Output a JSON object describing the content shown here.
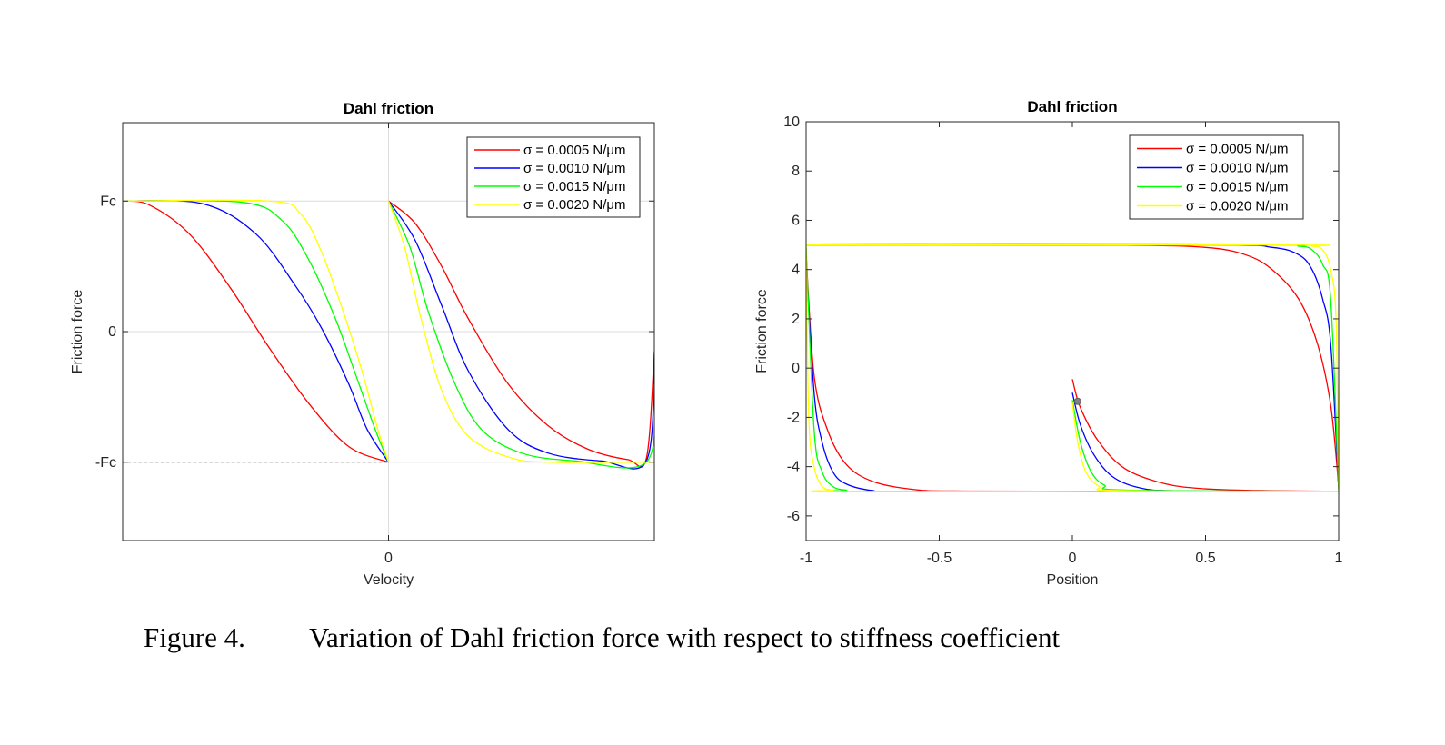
{
  "caption": {
    "label": "Figure 4.",
    "text": "Variation of Dahl friction force with respect to stiffness coefficient"
  },
  "colors": {
    "red": "#ff0000",
    "blue": "#0000ff",
    "green": "#00ff00",
    "yellow": "#ffff00",
    "axis": "#262626",
    "grid": "#dcdcdc"
  },
  "chart_data": [
    {
      "type": "line",
      "title": "Dahl friction",
      "xlabel": "Velocity",
      "ylabel": "Friction force",
      "xlim": [
        -1,
        1
      ],
      "ylim": [
        -1.6,
        1.6
      ],
      "xticks": [
        {
          "value": 0,
          "label": "0"
        }
      ],
      "yticks": [
        {
          "value": 1,
          "label": "Fc"
        },
        {
          "value": 0,
          "label": "0"
        },
        {
          "value": -1,
          "label": "-Fc"
        }
      ],
      "grid": true,
      "reference_line": {
        "y": -1,
        "style": "dotted"
      },
      "legend_position": "top-right",
      "series": [
        {
          "name": "σ = 0.0005 N/μm",
          "color": "#ff0000",
          "branch_left": [
            [
              -1,
              1
            ],
            [
              -0.9,
              0.97
            ],
            [
              -0.75,
              0.75
            ],
            [
              -0.6,
              0.35
            ],
            [
              -0.45,
              -0.12
            ],
            [
              -0.3,
              -0.55
            ],
            [
              -0.15,
              -0.88
            ],
            [
              0,
              -1
            ]
          ],
          "branch_right": [
            [
              0,
              1
            ],
            [
              0.1,
              0.83
            ],
            [
              0.2,
              0.5
            ],
            [
              0.3,
              0.1
            ],
            [
              0.45,
              -0.4
            ],
            [
              0.6,
              -0.72
            ],
            [
              0.75,
              -0.9
            ],
            [
              0.9,
              -0.98
            ],
            [
              0.97,
              -0.97
            ],
            [
              1,
              -0.15
            ]
          ]
        },
        {
          "name": "σ = 0.0010 N/μm",
          "color": "#0000ff",
          "branch_left": [
            [
              -1,
              1
            ],
            [
              -0.7,
              0.98
            ],
            [
              -0.5,
              0.75
            ],
            [
              -0.35,
              0.35
            ],
            [
              -0.25,
              0.02
            ],
            [
              -0.15,
              -0.4
            ],
            [
              -0.08,
              -0.75
            ],
            [
              0,
              -1
            ]
          ],
          "branch_right": [
            [
              0,
              1
            ],
            [
              0.1,
              0.7
            ],
            [
              0.2,
              0.2
            ],
            [
              0.3,
              -0.3
            ],
            [
              0.45,
              -0.75
            ],
            [
              0.6,
              -0.93
            ],
            [
              0.8,
              -0.99
            ],
            [
              0.97,
              -0.99
            ],
            [
              1,
              -0.2
            ]
          ]
        },
        {
          "name": "σ = 0.0015 N/μm",
          "color": "#00ff00",
          "branch_left": [
            [
              -1,
              1
            ],
            [
              -0.55,
              0.99
            ],
            [
              -0.4,
              0.85
            ],
            [
              -0.3,
              0.55
            ],
            [
              -0.2,
              0.1
            ],
            [
              -0.12,
              -0.35
            ],
            [
              -0.05,
              -0.75
            ],
            [
              0,
              -1
            ]
          ],
          "branch_right": [
            [
              0,
              1
            ],
            [
              0.08,
              0.65
            ],
            [
              0.15,
              0.15
            ],
            [
              0.25,
              -0.4
            ],
            [
              0.35,
              -0.75
            ],
            [
              0.5,
              -0.93
            ],
            [
              0.7,
              -0.99
            ],
            [
              0.97,
              -1
            ],
            [
              1,
              -0.4
            ]
          ]
        },
        {
          "name": "σ = 0.0020 N/μm",
          "color": "#ffff00",
          "branch_left": [
            [
              -1,
              1
            ],
            [
              -0.45,
              1
            ],
            [
              -0.33,
              0.9
            ],
            [
              -0.25,
              0.6
            ],
            [
              -0.17,
              0.15
            ],
            [
              -0.1,
              -0.3
            ],
            [
              -0.04,
              -0.75
            ],
            [
              0,
              -1
            ]
          ],
          "branch_right": [
            [
              0,
              1
            ],
            [
              0.06,
              0.65
            ],
            [
              0.12,
              0.12
            ],
            [
              0.2,
              -0.45
            ],
            [
              0.3,
              -0.8
            ],
            [
              0.45,
              -0.96
            ],
            [
              0.6,
              -1
            ],
            [
              1,
              -1
            ]
          ]
        }
      ]
    },
    {
      "type": "line",
      "title": "Dahl friction",
      "xlabel": "Position",
      "ylabel": "Friction force",
      "xlim": [
        -1,
        1
      ],
      "ylim": [
        -7,
        10
      ],
      "xticks": [
        {
          "value": -1,
          "label": "-1"
        },
        {
          "value": -0.5,
          "label": "-0.5"
        },
        {
          "value": 0,
          "label": "0"
        },
        {
          "value": 0.5,
          "label": "0.5"
        },
        {
          "value": 1,
          "label": "1"
        }
      ],
      "yticks": [
        {
          "value": 10,
          "label": "10"
        },
        {
          "value": 8,
          "label": "8"
        },
        {
          "value": 6,
          "label": "6"
        },
        {
          "value": 4,
          "label": "4"
        },
        {
          "value": 2,
          "label": "2"
        },
        {
          "value": 0,
          "label": "0"
        },
        {
          "value": -2,
          "label": "-2"
        },
        {
          "value": -4,
          "label": "-4"
        },
        {
          "value": -6,
          "label": "-6"
        }
      ],
      "grid": false,
      "legend_position": "top-right",
      "start_point": [
        0.02,
        -1.35
      ],
      "series": [
        {
          "name": "σ = 0.0005 N/μm",
          "color": "#ff0000",
          "initial": [
            [
              0,
              -0.45
            ],
            [
              0.03,
              -1.6
            ],
            [
              0.1,
              -3.0
            ],
            [
              0.2,
              -4.1
            ],
            [
              0.35,
              -4.7
            ],
            [
              0.5,
              -4.9
            ],
            [
              0.7,
              -4.97
            ],
            [
              1,
              -5
            ]
          ],
          "top": [
            [
              -1,
              5
            ],
            [
              -0.5,
              5
            ],
            [
              0.2,
              4.99
            ],
            [
              0.5,
              4.9
            ],
            [
              0.65,
              4.6
            ],
            [
              0.75,
              4.0
            ],
            [
              0.85,
              2.8
            ],
            [
              0.92,
              1.0
            ],
            [
              0.97,
              -1.5
            ],
            [
              1,
              -4.8
            ]
          ],
          "bottom": [
            [
              1,
              -5
            ],
            [
              0.5,
              -5
            ],
            [
              -0.4,
              -4.99
            ],
            [
              -0.6,
              -4.92
            ],
            [
              -0.75,
              -4.6
            ],
            [
              -0.85,
              -3.9
            ],
            [
              -0.92,
              -2.5
            ],
            [
              -0.97,
              -0.3
            ],
            [
              -1,
              4.6
            ]
          ]
        },
        {
          "name": "σ = 0.0010 N/μm",
          "color": "#0000ff",
          "initial": [
            [
              0,
              -1.0
            ],
            [
              0.03,
              -2.3
            ],
            [
              0.08,
              -3.5
            ],
            [
              0.15,
              -4.4
            ],
            [
              0.25,
              -4.85
            ],
            [
              0.4,
              -4.98
            ],
            [
              1,
              -5
            ]
          ],
          "top": [
            [
              -1,
              5
            ],
            [
              0.5,
              5
            ],
            [
              0.75,
              4.9
            ],
            [
              0.85,
              4.6
            ],
            [
              0.9,
              4.0
            ],
            [
              0.94,
              2.8
            ],
            [
              0.97,
              1.0
            ],
            [
              1,
              -4.9
            ]
          ],
          "bottom": [
            [
              1,
              -5
            ],
            [
              -0.6,
              -5
            ],
            [
              -0.75,
              -4.97
            ],
            [
              -0.85,
              -4.7
            ],
            [
              -0.9,
              -4.2
            ],
            [
              -0.94,
              -3.0
            ],
            [
              -0.97,
              -1.0
            ],
            [
              -1,
              4.4
            ]
          ]
        },
        {
          "name": "σ = 0.0015 N/μm",
          "color": "#00ff00",
          "initial": [
            [
              0,
              -1.3
            ],
            [
              0.03,
              -3.0
            ],
            [
              0.07,
              -4.2
            ],
            [
              0.12,
              -4.75
            ],
            [
              0.2,
              -4.95
            ],
            [
              1,
              -5
            ]
          ],
          "top": [
            [
              -1,
              5
            ],
            [
              0.7,
              5
            ],
            [
              0.85,
              4.95
            ],
            [
              0.9,
              4.8
            ],
            [
              0.94,
              4.2
            ],
            [
              0.97,
              2.8
            ],
            [
              1,
              -4.95
            ]
          ],
          "bottom": [
            [
              1,
              -5
            ],
            [
              -0.75,
              -5
            ],
            [
              -0.85,
              -4.95
            ],
            [
              -0.9,
              -4.8
            ],
            [
              -0.94,
              -4.2
            ],
            [
              -0.97,
              -2.5
            ],
            [
              -1,
              4.9
            ]
          ]
        },
        {
          "name": "σ = 0.0020 N/μm",
          "color": "#ffff00",
          "initial": [
            [
              0,
              -1.4
            ],
            [
              0.02,
              -3.0
            ],
            [
              0.05,
              -4.2
            ],
            [
              0.1,
              -4.8
            ],
            [
              0.18,
              -4.97
            ],
            [
              1,
              -5
            ]
          ],
          "top": [
            [
              -1,
              5
            ],
            [
              0.8,
              5
            ],
            [
              0.9,
              4.95
            ],
            [
              0.94,
              4.8
            ],
            [
              0.97,
              4.0
            ],
            [
              0.99,
              2.0
            ],
            [
              1,
              -4.98
            ]
          ],
          "bottom": [
            [
              1,
              -5
            ],
            [
              -0.82,
              -5
            ],
            [
              -0.9,
              -4.95
            ],
            [
              -0.94,
              -4.8
            ],
            [
              -0.97,
              -4.0
            ],
            [
              -0.99,
              -2.0
            ],
            [
              -1,
              5
            ]
          ]
        }
      ]
    }
  ]
}
